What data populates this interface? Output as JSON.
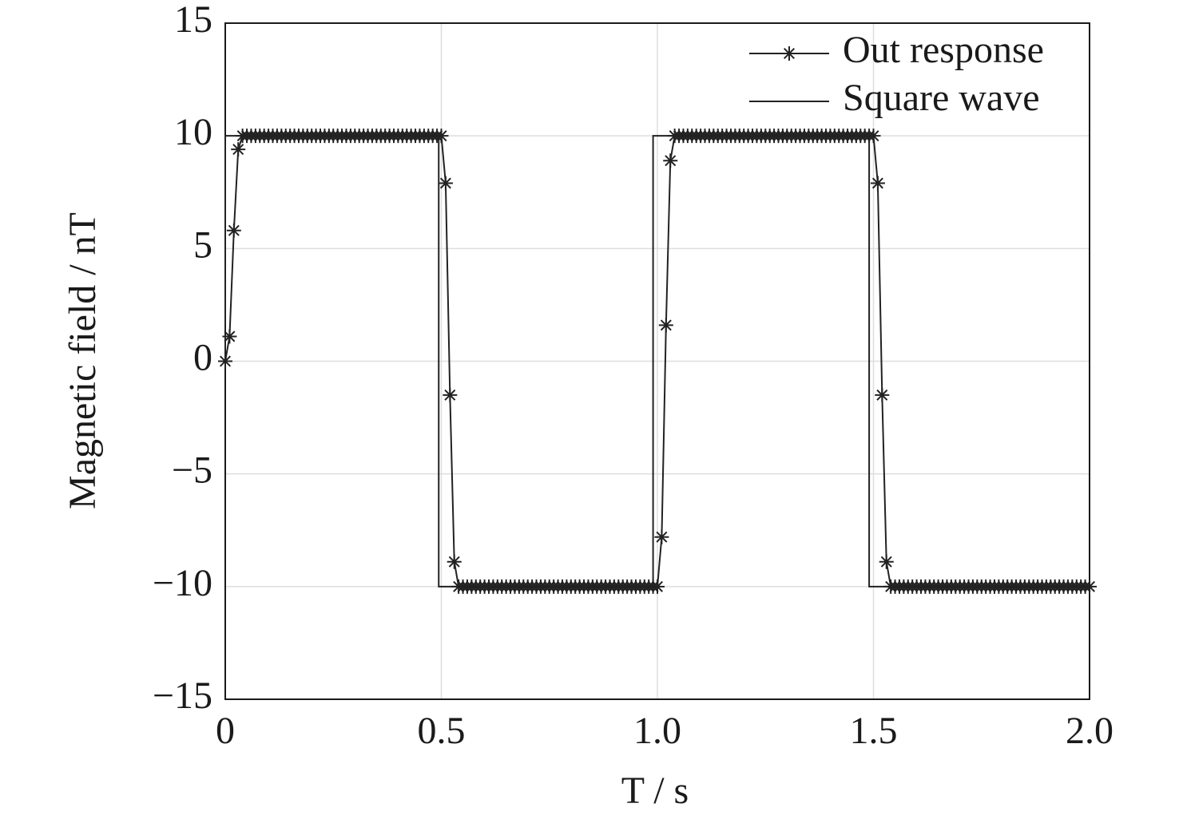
{
  "chart_data": {
    "type": "line",
    "xlabel": "T / s",
    "ylabel": "Magnetic field / nT",
    "xlim": [
      0,
      2
    ],
    "xticks": [
      0,
      0.5,
      {
        "value": 1,
        "label": "1.0"
      },
      1.5,
      {
        "value": 2,
        "label": "2.0"
      }
    ],
    "ylim": [
      -15,
      15
    ],
    "yticks": [
      {
        "value": -15,
        "label": "−15"
      },
      {
        "value": -10,
        "label": "−10"
      },
      {
        "value": -5,
        "label": "−5"
      },
      0,
      5,
      10,
      15
    ],
    "grid": true,
    "legend": "upper right",
    "series": [
      {
        "name": "Out response",
        "color": "#222222",
        "marker": "star",
        "x": [
          0,
          0.01,
          0.02,
          0.03,
          0.04,
          0.05,
          0.06,
          0.07,
          0.08,
          0.09,
          0.1,
          0.11,
          0.12,
          0.13,
          0.14,
          0.15,
          0.16,
          0.17,
          0.18,
          0.19,
          0.2,
          0.21,
          0.22,
          0.23,
          0.24,
          0.25,
          0.26,
          0.27,
          0.28,
          0.29,
          0.3,
          0.31,
          0.32,
          0.33,
          0.34,
          0.35,
          0.36,
          0.37,
          0.38,
          0.39,
          0.4,
          0.41,
          0.42,
          0.43,
          0.44,
          0.45,
          0.46,
          0.47,
          0.48,
          0.49,
          0.5,
          0.51,
          0.52,
          0.53,
          0.54,
          0.55,
          0.56,
          0.57,
          0.58,
          0.59,
          0.6,
          0.61,
          0.62,
          0.63,
          0.64,
          0.65,
          0.66,
          0.67,
          0.68,
          0.69,
          0.7,
          0.71,
          0.72,
          0.73,
          0.74,
          0.75,
          0.76,
          0.77,
          0.78,
          0.79,
          0.8,
          0.81,
          0.82,
          0.83,
          0.84,
          0.85,
          0.86,
          0.87,
          0.88,
          0.89,
          0.9,
          0.91,
          0.92,
          0.93,
          0.94,
          0.95,
          0.96,
          0.97,
          0.98,
          0.99,
          1,
          1.01,
          1.02,
          1.03,
          1.04,
          1.05,
          1.06,
          1.07,
          1.08,
          1.09,
          1.1,
          1.11,
          1.12,
          1.13,
          1.14,
          1.15,
          1.16,
          1.17,
          1.18,
          1.19,
          1.2,
          1.21,
          1.22,
          1.23,
          1.24,
          1.25,
          1.26,
          1.27,
          1.28,
          1.29,
          1.3,
          1.31,
          1.32,
          1.33,
          1.34,
          1.35,
          1.36,
          1.37,
          1.38,
          1.39,
          1.4,
          1.41,
          1.42,
          1.43,
          1.44,
          1.45,
          1.46,
          1.47,
          1.48,
          1.49,
          1.5,
          1.51,
          1.52,
          1.53,
          1.54,
          1.55,
          1.56,
          1.57,
          1.58,
          1.59,
          1.6,
          1.61,
          1.62,
          1.63,
          1.64,
          1.65,
          1.66,
          1.67,
          1.68,
          1.69,
          1.7,
          1.71,
          1.72,
          1.73,
          1.74,
          1.75,
          1.76,
          1.77,
          1.78,
          1.79,
          1.8,
          1.81,
          1.82,
          1.83,
          1.84,
          1.85,
          1.86,
          1.87,
          1.88,
          1.89,
          1.9,
          1.91,
          1.92,
          1.93,
          1.94,
          1.95,
          1.96,
          1.97,
          1.98,
          1.99,
          2
        ],
        "values": [
          0,
          1.1,
          5.8,
          9.4,
          10,
          10,
          10,
          10,
          10,
          10,
          10,
          10,
          10,
          10,
          10,
          10,
          10,
          10,
          10,
          10,
          10,
          10,
          10,
          10,
          10,
          10,
          10,
          10,
          10,
          10,
          10,
          10,
          10,
          10,
          10,
          10,
          10,
          10,
          10,
          10,
          10,
          10,
          10,
          10,
          10,
          10,
          10,
          10,
          10,
          10,
          10,
          7.9,
          -1.5,
          -8.9,
          -10,
          -10,
          -10,
          -10,
          -10,
          -10,
          -10,
          -10,
          -10,
          -10,
          -10,
          -10,
          -10,
          -10,
          -10,
          -10,
          -10,
          -10,
          -10,
          -10,
          -10,
          -10,
          -10,
          -10,
          -10,
          -10,
          -10,
          -10,
          -10,
          -10,
          -10,
          -10,
          -10,
          -10,
          -10,
          -10,
          -10,
          -10,
          -10,
          -10,
          -10,
          -10,
          -10,
          -10,
          -10,
          -10,
          -10,
          -7.8,
          1.6,
          8.9,
          10,
          10,
          10,
          10,
          10,
          10,
          10,
          10,
          10,
          10,
          10,
          10,
          10,
          10,
          10,
          10,
          10,
          10,
          10,
          10,
          10,
          10,
          10,
          10,
          10,
          10,
          10,
          10,
          10,
          10,
          10,
          10,
          10,
          10,
          10,
          10,
          10,
          10,
          10,
          10,
          10,
          10,
          10,
          10,
          10,
          10,
          10,
          7.9,
          -1.5,
          -8.9,
          -10,
          -10,
          -10,
          -10,
          -10,
          -10,
          -10,
          -10,
          -10,
          -10,
          -10,
          -10,
          -10,
          -10,
          -10,
          -10,
          -10,
          -10,
          -10,
          -10,
          -10,
          -10,
          -10,
          -10,
          -10,
          -10,
          -10,
          -10,
          -10,
          -10,
          -10,
          -10,
          -10,
          -10,
          -10,
          -10,
          -10,
          -10,
          -10,
          -10,
          -10,
          -10,
          -10,
          -10,
          -10,
          -10,
          -10
        ]
      },
      {
        "name": "Square wave",
        "color": "#222222",
        "x": [
          0,
          0,
          0.494,
          0.494,
          0.99,
          0.99,
          1.49,
          1.49,
          2
        ],
        "values": [
          0,
          10,
          10,
          -10,
          -10,
          10,
          10,
          -10,
          -10
        ]
      }
    ]
  }
}
